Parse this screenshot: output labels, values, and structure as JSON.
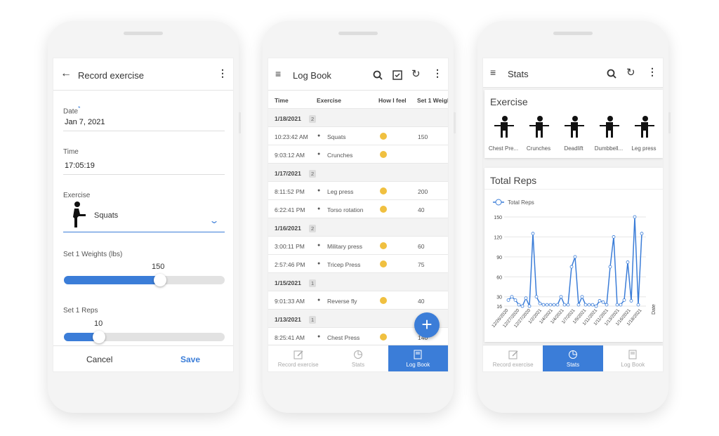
{
  "accent": "#3b7dd8",
  "record": {
    "title": "Record exercise",
    "back_icon": "arrow-left-icon",
    "menu_icon": "more-vertical-icon",
    "date_label": "Date",
    "required_mark": "*",
    "date_value": "Jan 7, 2021",
    "time_label": "Time",
    "time_value": "17:05:19",
    "exercise_label": "Exercise",
    "exercise_value": "Squats",
    "weights_label": "Set 1 Weights (lbs)",
    "weights_value": "150",
    "weights_fraction": 0.6,
    "reps_label": "Set 1 Reps",
    "reps_value": "10",
    "reps_fraction": 0.22,
    "cancel": "Cancel",
    "save": "Save"
  },
  "logbook": {
    "title": "Log Book",
    "columns": [
      "Time",
      "Exercise",
      "How I feel",
      "Set 1 Weigh"
    ],
    "groups": [
      {
        "date": "1/18/2021",
        "count": "2",
        "rows": [
          [
            "10:23:42 AM",
            "Squats",
            "150"
          ],
          [
            "9:03:12 AM",
            "Crunches",
            ""
          ]
        ]
      },
      {
        "date": "1/17/2021",
        "count": "2",
        "rows": [
          [
            "8:11:52 PM",
            "Leg press",
            "200"
          ],
          [
            "6:22:41 PM",
            "Torso rotation",
            "40"
          ]
        ]
      },
      {
        "date": "1/16/2021",
        "count": "2",
        "rows": [
          [
            "3:00:11 PM",
            "Military press",
            "60"
          ],
          [
            "2:57:46 PM",
            "Tricep Press",
            "75"
          ]
        ]
      },
      {
        "date": "1/15/2021",
        "count": "1",
        "rows": [
          [
            "9:01:33 AM",
            "Reverse fly",
            "40"
          ]
        ]
      },
      {
        "date": "1/13/2021",
        "count": "1",
        "rows": [
          [
            "8:25:41 AM",
            "Chest Press",
            "140"
          ]
        ]
      }
    ],
    "fab_icon": "plus-icon"
  },
  "nav": [
    "Record exercise",
    "Stats",
    "Log Book"
  ],
  "stats": {
    "title": "Stats",
    "exercise_heading": "Exercise",
    "exercises": [
      "Chest Pre...",
      "Crunches",
      "Deadlift",
      "Dumbbell...",
      "Leg press"
    ],
    "chart_title": "Total Reps"
  },
  "chart_data": {
    "type": "line",
    "title": "Total Reps",
    "xlabel": "Date",
    "ylabel": "",
    "legend": [
      "Total Reps"
    ],
    "legend_placement": "top-left",
    "yticks": [
      16,
      30,
      60,
      90,
      120,
      150
    ],
    "ylim": [
      16,
      150
    ],
    "grid": true,
    "xtick_labels": [
      "12/26/2020",
      "12/27/2020",
      "12/27/2020",
      "1/2/2021",
      "1/4/2021",
      "1/4/2021",
      "1/7/2021",
      "1/9/2021",
      "1/11/2021",
      "1/11/2021",
      "1/13/2021",
      "1/16/2021",
      "1/18/2021"
    ],
    "series": [
      {
        "name": "Total Reps",
        "color": "#3b7dd8",
        "values": [
          25,
          30,
          25,
          18,
          16,
          28,
          16,
          125,
          30,
          20,
          18,
          18,
          18,
          18,
          18,
          30,
          18,
          18,
          75,
          90,
          18,
          30,
          18,
          18,
          18,
          16,
          24,
          22,
          18,
          75,
          120,
          18,
          18,
          25,
          82,
          24,
          150,
          18,
          125
        ]
      }
    ]
  }
}
